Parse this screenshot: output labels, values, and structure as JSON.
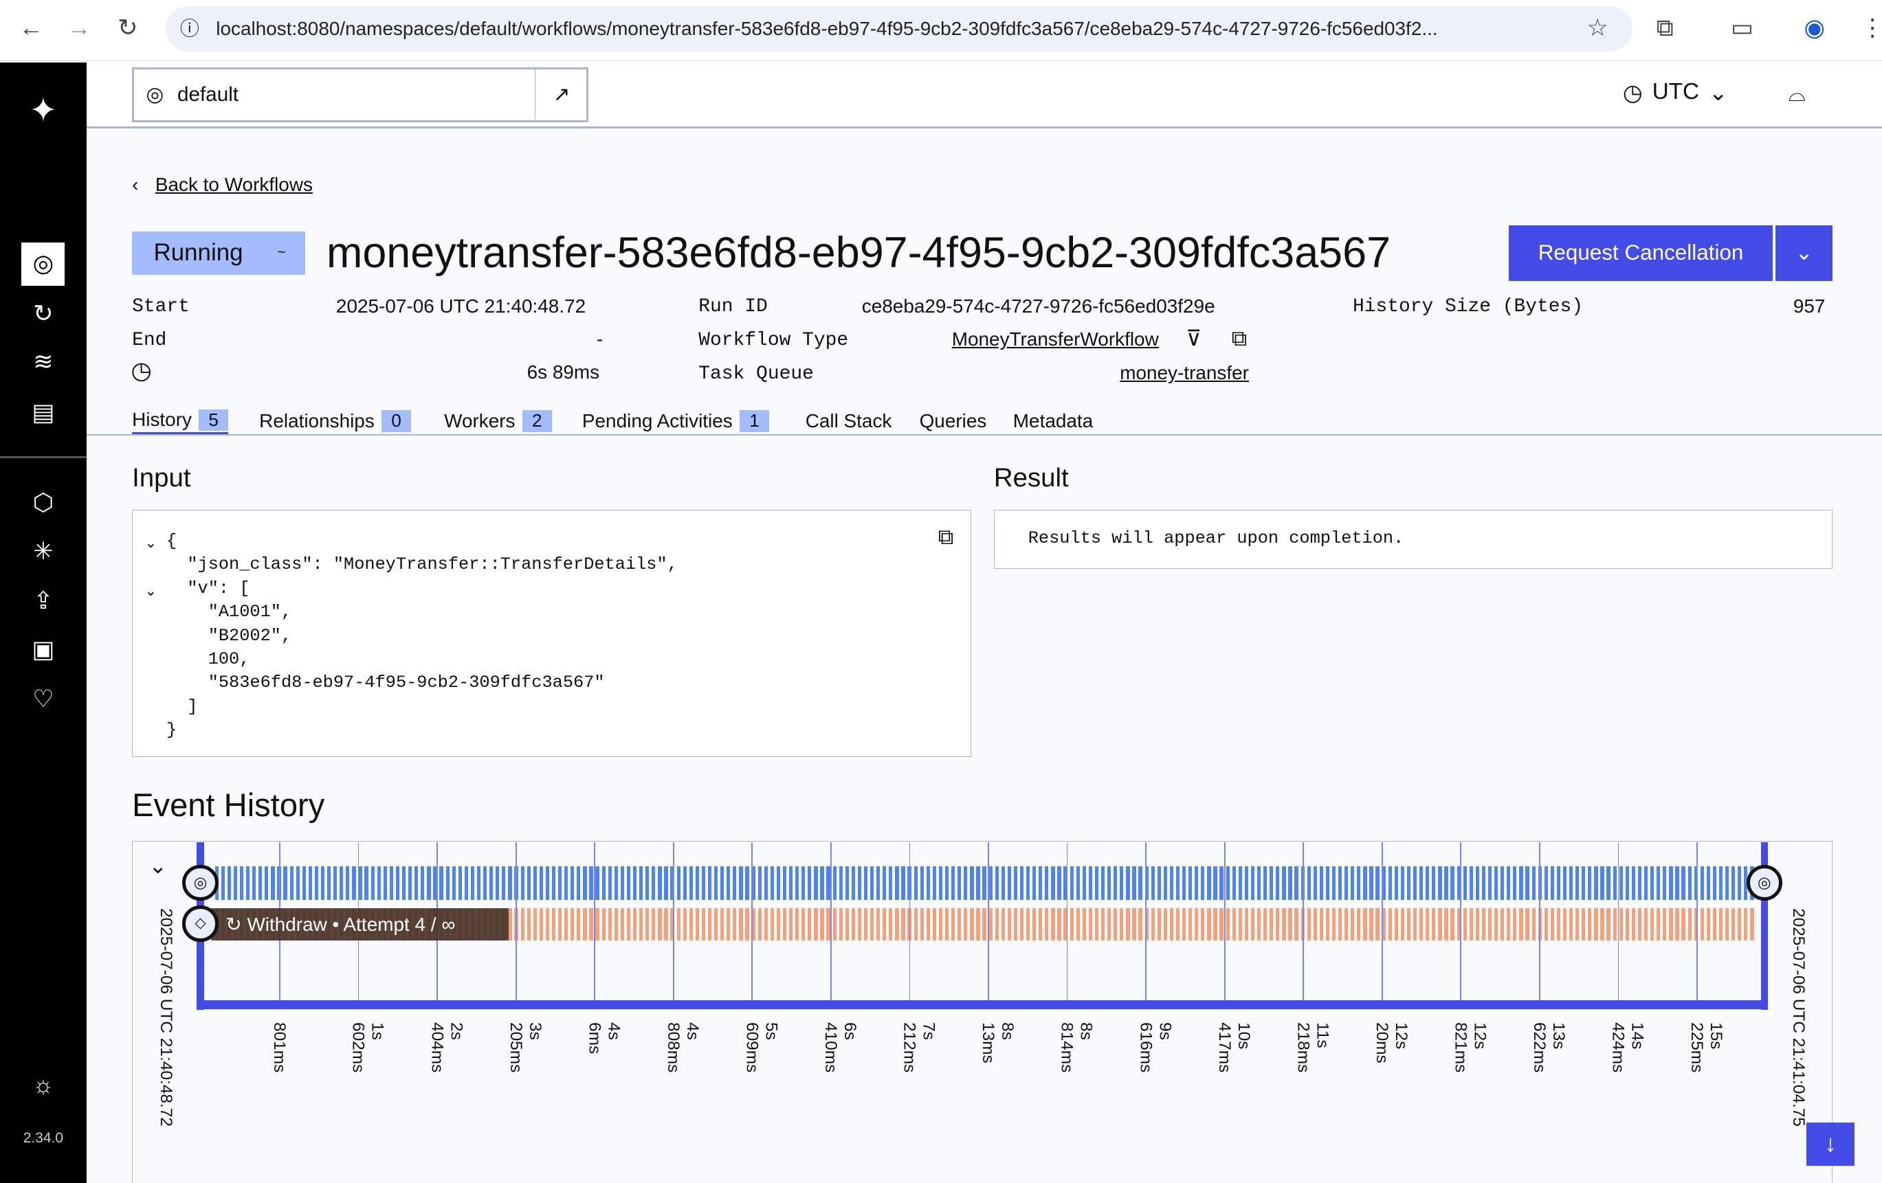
{
  "browser": {
    "url": "localhost:8080/namespaces/default/workflows/moneytransfer-583e6fd8-eb97-4f95-9cb2-309fdfc3a567/ce8eba29-574c-4727-9726-fc56ed03f2..."
  },
  "header": {
    "namespace": "default",
    "timezone": "UTC"
  },
  "sidebar": {
    "version": "2.34.0"
  },
  "back_link": "Back to Workflows",
  "status": "Running",
  "title": "moneytransfer-583e6fd8-eb97-4f95-9cb2-309fdfc3a567",
  "actions": {
    "cancel": "Request Cancellation"
  },
  "details": {
    "start_label": "Start",
    "start": "2025-07-06 UTC 21:40:48.72",
    "end_label": "End",
    "end": "-",
    "duration": "6s 89ms",
    "run_id_label": "Run ID",
    "run_id": "ce8eba29-574c-4727-9726-fc56ed03f29e",
    "type_label": "Workflow Type",
    "type": "MoneyTransferWorkflow",
    "queue_label": "Task Queue",
    "queue": "money-transfer",
    "size_label": "History Size (Bytes)",
    "size": "957"
  },
  "tabs": [
    {
      "label": "History",
      "count": "5"
    },
    {
      "label": "Relationships",
      "count": "0"
    },
    {
      "label": "Workers",
      "count": "2"
    },
    {
      "label": "Pending Activities",
      "count": "1"
    },
    {
      "label": "Call Stack"
    },
    {
      "label": "Queries"
    },
    {
      "label": "Metadata"
    }
  ],
  "input": {
    "title": "Input",
    "lines": [
      "{",
      "  \"json_class\": \"MoneyTransfer::TransferDetails\",",
      "  \"v\": [",
      "    \"A1001\",",
      "    \"B2002\",",
      "    100,",
      "    \"583e6fd8-eb97-4f95-9cb2-309fdfc3a567\"",
      "  ]",
      "}"
    ]
  },
  "result": {
    "title": "Result",
    "text": "Results will appear upon completion."
  },
  "event_history": {
    "title": "Event History",
    "start": "2025-07-06 UTC 21:40:48.72",
    "end": "2025-07-06 UTC 21:41:04.75",
    "activity": "Withdraw • Attempt 4 / ∞",
    "ticks": [
      "801ms",
      "1s 602ms",
      "2s 404ms",
      "3s 205ms",
      "4s 6ms",
      "4s 808ms",
      "5s 609ms",
      "6s 410ms",
      "7s 212ms",
      "8s 13ms",
      "8s 814ms",
      "9s 616ms",
      "10s 417ms",
      "11s 218ms",
      "12s 20ms",
      "12s 821ms",
      "13s 622ms",
      "14s 424ms",
      "15s 225ms"
    ],
    "colors": {
      "workflow": "#4f83ef",
      "activity": "#f4a07a",
      "axis": "#444ce7"
    }
  }
}
